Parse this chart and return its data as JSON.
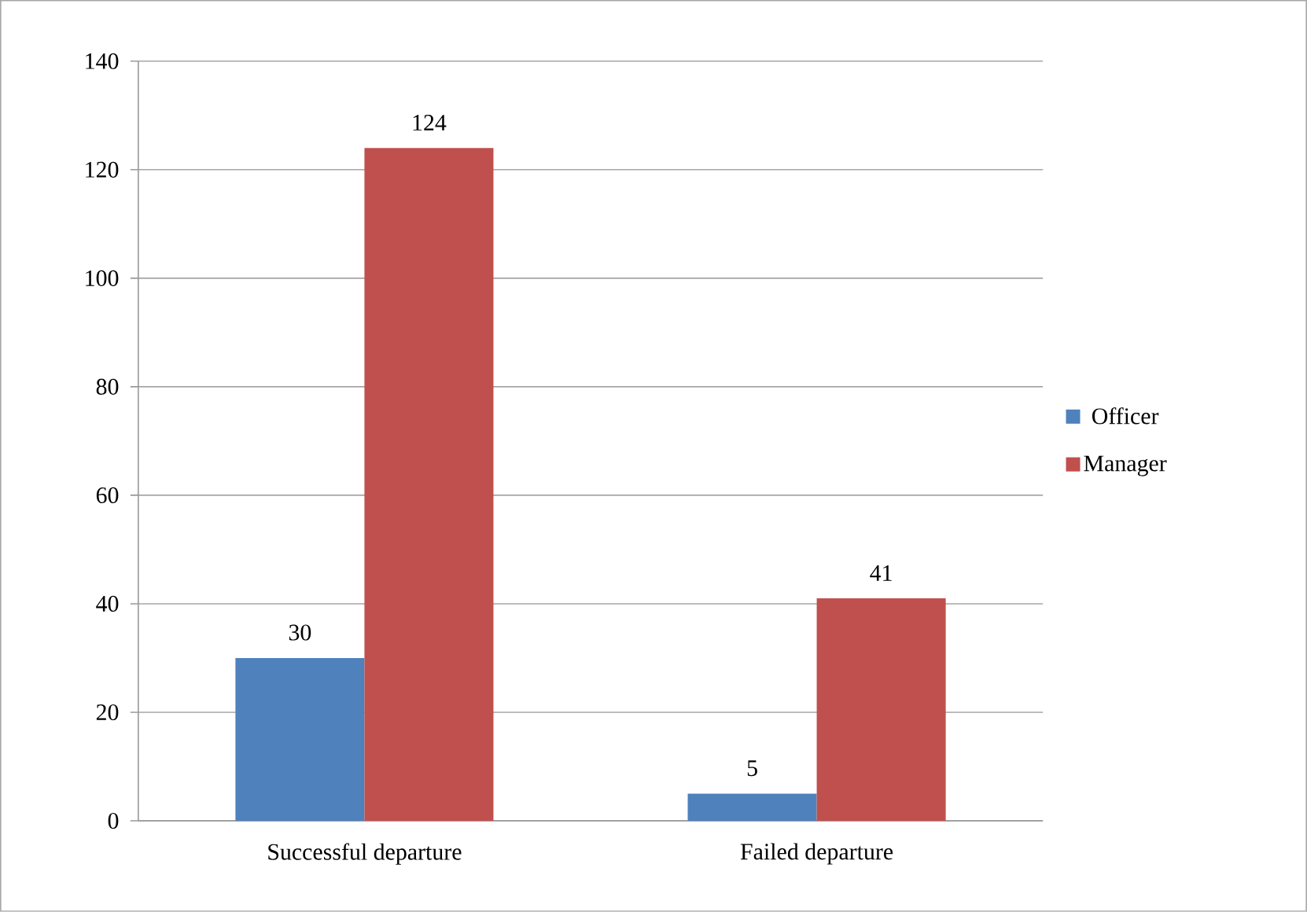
{
  "chart_data": {
    "type": "bar",
    "categories": [
      "Successful departure",
      "Failed departure"
    ],
    "series": [
      {
        "name": "Officer",
        "color": "#4f81bd",
        "values": [
          30,
          5
        ]
      },
      {
        "name": "Manager",
        "color": "#c0504d",
        "values": [
          124,
          41
        ]
      }
    ],
    "ylim": [
      0,
      140
    ],
    "yticks": [
      0,
      20,
      40,
      60,
      80,
      100,
      120,
      140
    ],
    "grid": "y",
    "legend": "right",
    "data_labels": true
  }
}
